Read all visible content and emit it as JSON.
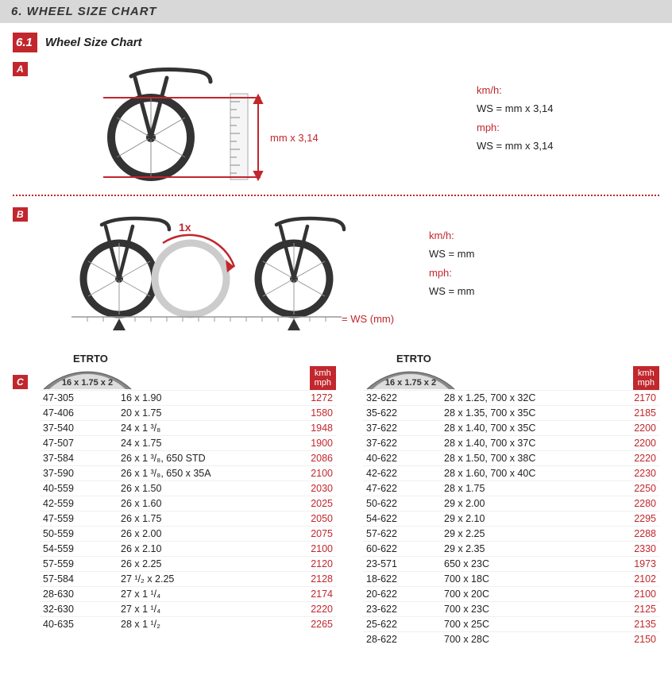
{
  "header": {
    "title": "6. WHEEL SIZE CHART"
  },
  "sub": {
    "num": "6.1",
    "title": "Wheel Size Chart"
  },
  "letters": {
    "a": "A",
    "b": "B",
    "c": "C"
  },
  "diagA": {
    "mm_label": "mm x 3,14"
  },
  "formulaA": {
    "kmh_label": "km/h:",
    "kmh_eq": "WS = mm x 3,14",
    "mph_label": "mph:",
    "mph_eq": "WS = mm x 3,14"
  },
  "diagB": {
    "one_x": "1x",
    "ws_label": "= WS (mm)"
  },
  "formulaB": {
    "kmh_label": "km/h:",
    "kmh_eq": "WS = mm",
    "mph_label": "mph:",
    "mph_eq": "WS = mm"
  },
  "table_hdr": {
    "etrto": "ETRTO",
    "tire": "16 x 1.75 x 2",
    "kmh": "kmh",
    "mph": "mph"
  },
  "left_rows": [
    {
      "e": "47-305",
      "s": "16 x 1.90",
      "w": "1272"
    },
    {
      "e": "47-406",
      "s": "20 x 1.75",
      "w": "1580"
    },
    {
      "e": "37-540",
      "s": "24 x 1 ³/₈",
      "w": "1948"
    },
    {
      "e": "47-507",
      "s": "24 x 1.75",
      "w": "1900"
    },
    {
      "e": "37-584",
      "s": "26 x 1 ³/₈, 650 STD",
      "w": "2086"
    },
    {
      "e": "37-590",
      "s": "26 x 1 ³/₈, 650 x 35A",
      "w": "2100"
    },
    {
      "e": "40-559",
      "s": "26 x 1.50",
      "w": "2030"
    },
    {
      "e": "42-559",
      "s": "26 x 1.60",
      "w": "2025"
    },
    {
      "e": "47-559",
      "s": "26 x 1.75",
      "w": "2050"
    },
    {
      "e": "50-559",
      "s": "26 x 2.00",
      "w": "2075"
    },
    {
      "e": "54-559",
      "s": "26 x 2.10",
      "w": "2100"
    },
    {
      "e": "57-559",
      "s": "26 x 2.25",
      "w": "2120"
    },
    {
      "e": "57-584",
      "s": "27 ¹/₂ x 2.25",
      "w": "2128"
    },
    {
      "e": "28-630",
      "s": "27 x 1 ¹/₄",
      "w": "2174"
    },
    {
      "e": "32-630",
      "s": "27 x 1 ¹/₄",
      "w": "2220"
    },
    {
      "e": "40-635",
      "s": "28 x 1 ¹/₂",
      "w": "2265"
    }
  ],
  "right_rows": [
    {
      "e": "32-622",
      "s": "28 x 1.25, 700 x 32C",
      "w": "2170"
    },
    {
      "e": "35-622",
      "s": "28 x 1.35, 700 x 35C",
      "w": "2185"
    },
    {
      "e": "37-622",
      "s": "28 x 1.40, 700 x 35C",
      "w": "2200"
    },
    {
      "e": "37-622",
      "s": "28 x 1.40, 700 x 37C",
      "w": "2200"
    },
    {
      "e": "40-622",
      "s": "28 x 1.50, 700 x 38C",
      "w": "2220"
    },
    {
      "e": "42-622",
      "s": "28 x 1.60, 700 x 40C",
      "w": "2230"
    },
    {
      "e": "47-622",
      "s": "28 x 1.75",
      "w": "2250"
    },
    {
      "e": "50-622",
      "s": "29 x 2.00",
      "w": "2280"
    },
    {
      "e": "54-622",
      "s": "29 x 2.10",
      "w": "2295"
    },
    {
      "e": "57-622",
      "s": "29 x 2.25",
      "w": "2288"
    },
    {
      "e": "60-622",
      "s": "29 x 2.35",
      "w": "2330"
    },
    {
      "e": "23-571",
      "s": "650 x 23C",
      "w": "1973"
    },
    {
      "e": "18-622",
      "s": "700 x 18C",
      "w": "2102"
    },
    {
      "e": "20-622",
      "s": "700 x 20C",
      "w": "2100"
    },
    {
      "e": "23-622",
      "s": "700 x 23C",
      "w": "2125"
    },
    {
      "e": "25-622",
      "s": "700 x 25C",
      "w": "2135"
    },
    {
      "e": "28-622",
      "s": "700 x 28C",
      "w": "2150"
    }
  ]
}
